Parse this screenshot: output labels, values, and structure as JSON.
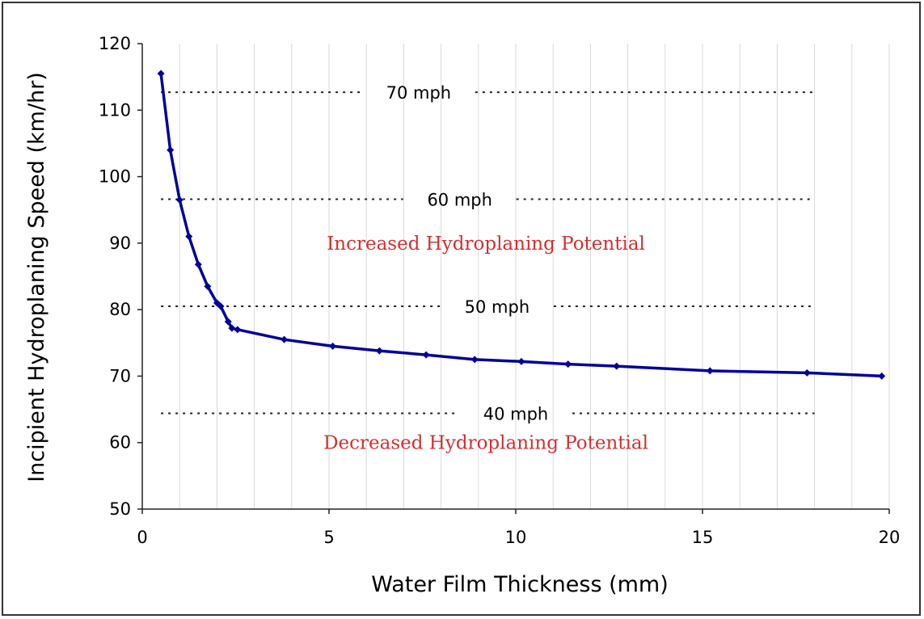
{
  "chart_data": {
    "type": "line",
    "title": "",
    "xlabel": "Water Film Thickness (mm)",
    "ylabel": "Incipient Hydroplaning Speed (km/hr)",
    "xlim": [
      0,
      20
    ],
    "ylim": [
      50,
      120
    ],
    "xticks": [
      0,
      5,
      10,
      15,
      20
    ],
    "yticks": [
      50,
      60,
      70,
      80,
      90,
      100,
      110,
      120
    ],
    "grid": {
      "x_minor_vertical": true,
      "y_horizontal": false
    },
    "legend": "none",
    "series": [
      {
        "x": [
          0.5,
          0.75,
          1.0,
          1.25,
          1.5,
          1.75,
          2.0,
          2.1,
          2.3,
          2.4,
          2.55,
          3.8,
          5.1,
          6.35,
          7.6,
          8.9,
          10.15,
          11.4,
          12.7,
          15.2,
          17.8,
          19.8
        ],
        "y": [
          115.5,
          104.0,
          96.5,
          91.0,
          86.8,
          83.5,
          81.0,
          80.5,
          78.2,
          77.2,
          77.0,
          75.5,
          74.5,
          73.8,
          73.2,
          72.5,
          72.2,
          71.8,
          71.5,
          70.8,
          70.5,
          70.0
        ]
      }
    ],
    "reference_lines": [
      {
        "label": "70 mph",
        "y": 112.7,
        "x_end": 18
      },
      {
        "label": "60 mph",
        "y": 96.6,
        "x_end": 18
      },
      {
        "label": "50 mph",
        "y": 80.5,
        "x_end": 18
      },
      {
        "label": "40 mph",
        "y": 64.4,
        "x_end": 18
      }
    ],
    "annotations": [
      {
        "text": "Increased Hydroplaning Potential",
        "x": 9.2,
        "y": 90
      },
      {
        "text": "Decreased Hydroplaning Potential",
        "x": 9.2,
        "y": 60
      }
    ]
  },
  "colors": {
    "series": "#000099",
    "annotation": "#d03030",
    "grid": "#d9d9d9",
    "reference_line": "#222222",
    "axis": "#222222"
  }
}
